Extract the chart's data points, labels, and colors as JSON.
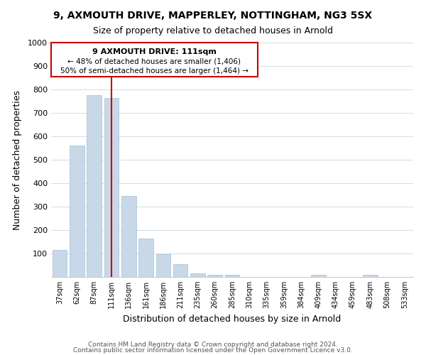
{
  "title": "9, AXMOUTH DRIVE, MAPPERLEY, NOTTINGHAM, NG3 5SX",
  "subtitle": "Size of property relative to detached houses in Arnold",
  "xlabel": "Distribution of detached houses by size in Arnold",
  "ylabel": "Number of detached properties",
  "categories": [
    "37sqm",
    "62sqm",
    "87sqm",
    "111sqm",
    "136sqm",
    "161sqm",
    "186sqm",
    "211sqm",
    "235sqm",
    "260sqm",
    "285sqm",
    "310sqm",
    "335sqm",
    "359sqm",
    "384sqm",
    "409sqm",
    "434sqm",
    "459sqm",
    "483sqm",
    "508sqm",
    "533sqm"
  ],
  "values": [
    115,
    560,
    775,
    765,
    345,
    165,
    98,
    55,
    15,
    8,
    8,
    0,
    0,
    0,
    0,
    8,
    0,
    0,
    8,
    0,
    0
  ],
  "bar_color": "#c8d8e8",
  "bar_edge_color": "#a8c0d0",
  "highlight_index": 3,
  "highlight_line_color": "#cc0000",
  "annotation_title": "9 AXMOUTH DRIVE: 111sqm",
  "annotation_line1": "← 48% of detached houses are smaller (1,406)",
  "annotation_line2": "50% of semi-detached houses are larger (1,464) →",
  "annotation_box_edge": "#cc0000",
  "ylim": [
    0,
    1000
  ],
  "yticks": [
    0,
    100,
    200,
    300,
    400,
    500,
    600,
    700,
    800,
    900,
    1000
  ],
  "footer_line1": "Contains HM Land Registry data © Crown copyright and database right 2024.",
  "footer_line2": "Contains public sector information licensed under the Open Government Licence v3.0.",
  "bg_color": "#ffffff",
  "grid_color": "#d0dce8"
}
